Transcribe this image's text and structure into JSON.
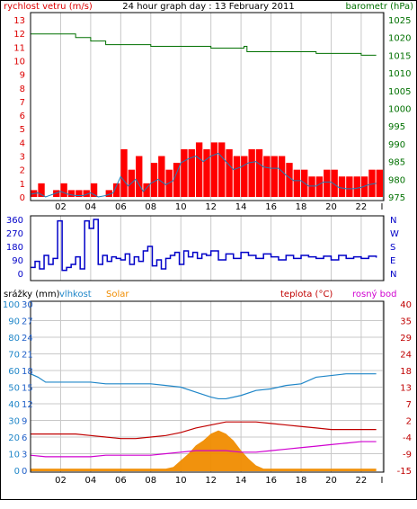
{
  "colors": {
    "wind": "#dd0000",
    "gust_fill": "#ff0000",
    "wind_avg": "#1b7fb8",
    "pressure": "#007000",
    "direction": "#0000c8",
    "humidity": "#1f86c8",
    "solar": "#f08c00",
    "temperature": "#c00000",
    "dewpoint": "#d000d0",
    "rain_axis": "#1f5fc8",
    "grid": "#c8c8c8"
  },
  "chart_data": [
    {
      "type": "line",
      "title": "24 hour graph day : 13 February 2011",
      "left_label": "rychlost vetru (m/s)",
      "right_label": "barometr (hPa)",
      "x_ticks": [
        "02",
        "04",
        "06",
        "08",
        "10",
        "12",
        "14",
        "16",
        "18",
        "20",
        "22",
        "I"
      ],
      "ylim_left": [
        0,
        13
      ],
      "y_ticks_left": [
        "13",
        "12",
        "11",
        "10",
        "9",
        "8",
        "7",
        "6",
        "5",
        "4",
        "3",
        "2",
        "1",
        "0"
      ],
      "ylim_right": [
        975,
        1025
      ],
      "y_ticks_right": [
        "1025",
        "1020",
        "1015",
        "1010",
        "1005",
        "1000",
        "995",
        "990",
        "985",
        "980",
        "975"
      ],
      "series": [
        {
          "name": "",
          "axis": "left",
          "color_key": "gust_fill",
          "style": "bars",
          "x": [
            0,
            0.5,
            1,
            1.5,
            2,
            2.5,
            3,
            3.5,
            4,
            4.5,
            5,
            5.5,
            6,
            6.5,
            7,
            7.5,
            8,
            8.5,
            9,
            9.5,
            10,
            10.5,
            11,
            11.5,
            12,
            12.5,
            13,
            13.5,
            14,
            14.5,
            15,
            15.5,
            16,
            16.5,
            17,
            17.5,
            18,
            18.5,
            19,
            19.5,
            20,
            20.5,
            21,
            21.5,
            22,
            22.5,
            23
          ],
          "values": [
            0.5,
            1,
            0,
            0.5,
            1,
            0.5,
            0.5,
            0.5,
            1,
            0,
            0.5,
            1,
            3.5,
            2,
            3,
            1,
            2.5,
            3,
            2,
            2.5,
            3.5,
            3.5,
            4,
            3.5,
            4,
            4,
            3.5,
            3,
            3,
            3.5,
            3.5,
            3,
            3,
            3,
            2.5,
            2,
            2,
            1.5,
            1.5,
            2,
            2,
            1.5,
            1.5,
            1.5,
            1.5,
            2,
            2
          ]
        },
        {
          "name": "",
          "axis": "left",
          "color_key": "wind_avg",
          "style": "line",
          "x": [
            0,
            0.5,
            1,
            1.5,
            2,
            2.5,
            3,
            3.5,
            4,
            4.5,
            5,
            5.5,
            6,
            6.5,
            7,
            7.5,
            8,
            8.5,
            9,
            9.5,
            10,
            10.5,
            11,
            11.5,
            12,
            12.5,
            13,
            13.5,
            14,
            14.5,
            15,
            15.5,
            16,
            16.5,
            17,
            17.5,
            18,
            18.5,
            19,
            19.5,
            20,
            20.5,
            21,
            21.5,
            22,
            22.5,
            23
          ],
          "values": [
            0.2,
            0.3,
            0,
            0.2,
            0.4,
            0.2,
            0.1,
            0.1,
            0.3,
            0,
            0.1,
            0.3,
            1.5,
            0.8,
            1.3,
            0.4,
            1,
            1.3,
            0.9,
            1.2,
            2.5,
            2.8,
            3,
            2.6,
            3,
            3.2,
            2.6,
            2,
            2.2,
            2.5,
            2.6,
            2.2,
            2.1,
            2.1,
            1.6,
            1.2,
            1.2,
            0.8,
            0.8,
            1.1,
            1.1,
            0.7,
            0.6,
            0.6,
            0.7,
            0.9,
            1
          ]
        },
        {
          "name": "",
          "axis": "right",
          "color_key": "pressure",
          "style": "line",
          "x": [
            0,
            2,
            3,
            4,
            5,
            6,
            7,
            8,
            9,
            10,
            11,
            12,
            13,
            14,
            14.2,
            14.4,
            15,
            16,
            17,
            18,
            19,
            20,
            21,
            22,
            23
          ],
          "values": [
            1021,
            1021,
            1020,
            1019,
            1018,
            1018,
            1018,
            1017.5,
            1017.5,
            1017.5,
            1017.5,
            1017,
            1017,
            1017,
            1017.5,
            1016,
            1016,
            1016,
            1016,
            1016,
            1015.5,
            1015.5,
            1015.5,
            1015,
            1015
          ]
        }
      ]
    },
    {
      "type": "line",
      "title": "",
      "x_ticks": [
        "02",
        "04",
        "06",
        "08",
        "10",
        "12",
        "14",
        "16",
        "18",
        "20",
        "22",
        "I"
      ],
      "ylim": [
        0,
        360
      ],
      "y_ticks_left": [
        "360",
        "270",
        "180",
        "90",
        "0"
      ],
      "y_ticks_right": [
        "N",
        "W",
        "S",
        "E",
        "N"
      ],
      "series": [
        {
          "name": "",
          "color_key": "direction",
          "x": [
            0,
            0.3,
            0.6,
            0.9,
            1.2,
            1.5,
            1.8,
            2.1,
            2.4,
            2.7,
            3,
            3.3,
            3.6,
            3.9,
            4.2,
            4.5,
            4.8,
            5.1,
            5.4,
            5.7,
            6,
            6.3,
            6.6,
            6.9,
            7.2,
            7.5,
            7.8,
            8.1,
            8.4,
            8.7,
            9,
            9.3,
            9.6,
            9.9,
            10.2,
            10.5,
            10.8,
            11.1,
            11.4,
            11.7,
            12,
            12.5,
            13,
            13.5,
            14,
            14.5,
            15,
            15.5,
            16,
            16.5,
            17,
            17.5,
            18,
            18.5,
            19,
            19.5,
            20,
            20.5,
            21,
            21.5,
            22,
            22.5,
            23
          ],
          "values": [
            40,
            80,
            30,
            120,
            60,
            100,
            350,
            20,
            40,
            60,
            110,
            30,
            350,
            300,
            360,
            60,
            120,
            80,
            110,
            100,
            90,
            130,
            60,
            110,
            80,
            150,
            180,
            50,
            90,
            30,
            100,
            120,
            140,
            60,
            150,
            110,
            140,
            100,
            130,
            120,
            150,
            90,
            130,
            100,
            140,
            120,
            100,
            130,
            110,
            90,
            120,
            100,
            120,
            110,
            100,
            115,
            90,
            120,
            100,
            110,
            100,
            115,
            105
          ]
        }
      ]
    },
    {
      "type": "line",
      "title": "",
      "top_labels": [
        "srážky (mm)",
        "vlhkost",
        "Solar",
        "teplota (°C)",
        "rosný bod"
      ],
      "x_ticks": [
        "02",
        "04",
        "06",
        "08",
        "10",
        "12",
        "14",
        "16",
        "18",
        "20",
        "22",
        "I"
      ],
      "y_ticks_humidity": [
        "100",
        "90",
        "80",
        "70",
        "60",
        "50",
        "40",
        "30",
        "20",
        "10",
        "0"
      ],
      "y_ticks_rain": [
        "30",
        "27",
        "24",
        "21",
        "18",
        "15",
        "12",
        "9",
        "6",
        "3",
        "0"
      ],
      "y_ticks_temp": [
        "40",
        "35",
        "29",
        "24",
        "18",
        "13",
        "7",
        "2",
        "-4",
        "-9",
        "-15"
      ],
      "ylim_humidity": [
        0,
        100
      ],
      "ylim_temp": [
        -15,
        40
      ],
      "series": [
        {
          "name": "vlhkost",
          "axis": "humidity",
          "color_key": "humidity",
          "x": [
            0,
            0.5,
            1,
            2,
            3,
            4,
            5,
            6,
            7,
            8,
            9,
            10,
            11,
            12,
            12.5,
            13,
            14,
            15,
            16,
            17,
            18,
            19,
            20,
            21,
            22,
            23
          ],
          "values": [
            58,
            56,
            53,
            53,
            53,
            53,
            52,
            52,
            52,
            52,
            51,
            50,
            47,
            44,
            43,
            43,
            45,
            48,
            49,
            51,
            52,
            56,
            57,
            58,
            58,
            58
          ]
        },
        {
          "name": "teplota (°C)",
          "axis": "temp",
          "color_key": "temperature",
          "x": [
            0,
            1,
            2,
            3,
            4,
            5,
            6,
            7,
            8,
            9,
            10,
            11,
            12,
            13,
            14,
            15,
            16,
            17,
            18,
            19,
            20,
            21,
            22,
            23
          ],
          "values": [
            -3,
            -3,
            -3,
            -3,
            -3.5,
            -4,
            -4.5,
            -4.5,
            -4,
            -3.5,
            -2.5,
            -1,
            0,
            1,
            1,
            1,
            0.5,
            0,
            -0.5,
            -1,
            -1.5,
            -1.5,
            -1.5,
            -1.5
          ]
        },
        {
          "name": "rosný bod",
          "axis": "temp",
          "color_key": "dewpoint",
          "x": [
            0,
            1,
            2,
            3,
            4,
            5,
            6,
            7,
            8,
            9,
            10,
            11,
            12,
            13,
            14,
            15,
            16,
            17,
            18,
            19,
            20,
            21,
            22,
            23
          ],
          "values": [
            -10,
            -10.5,
            -10.5,
            -10.5,
            -10.5,
            -10,
            -10,
            -10,
            -10,
            -9.5,
            -9,
            -8.5,
            -8.5,
            -8.5,
            -9,
            -9,
            -8.5,
            -8,
            -7.5,
            -7,
            -6.5,
            -6,
            -5.5,
            -5.5
          ]
        },
        {
          "name": "Solar",
          "axis": "humidity",
          "color_key": "solar",
          "style": "area",
          "x": [
            0,
            5,
            7,
            8,
            9,
            9.5,
            10,
            10.5,
            11,
            11.5,
            12,
            12.5,
            13,
            13.5,
            14,
            14.5,
            15,
            15.5,
            16,
            23
          ],
          "values": [
            1,
            1,
            1,
            1,
            1,
            2,
            6,
            10,
            15,
            18,
            22,
            24,
            22,
            18,
            12,
            7,
            3,
            1,
            1,
            1
          ]
        }
      ]
    }
  ]
}
